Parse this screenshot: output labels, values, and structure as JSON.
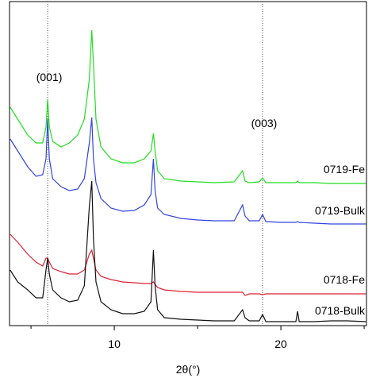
{
  "chart_data": {
    "type": "line",
    "xlabel": "2θ(°)",
    "xlim": [
      3.71,
      25.14
    ],
    "xticks": [
      10,
      20
    ],
    "xminor": [
      5,
      15,
      25
    ],
    "ylim": [
      0,
      408
    ],
    "ref_lines": [
      {
        "x": 6.0,
        "label": "(001)"
      },
      {
        "x": 18.9,
        "label": "(003)"
      }
    ],
    "x": [
      3.75,
      4.2,
      4.8,
      5.3,
      5.7,
      5.9,
      6.0,
      6.1,
      6.3,
      6.8,
      7.3,
      7.8,
      8.2,
      8.5,
      8.65,
      8.75,
      8.9,
      9.2,
      9.8,
      10.5,
      11.2,
      11.8,
      12.2,
      12.35,
      12.45,
      12.6,
      13.0,
      14,
      15,
      16,
      17.2,
      17.7,
      17.85,
      18.1,
      18.7,
      18.9,
      19.1,
      20,
      20.9,
      21.0,
      21.1,
      22,
      23,
      24,
      25.1
    ],
    "series": [
      {
        "name": "0719-Fe",
        "color": "#22dd22",
        "values": [
          275,
          260,
          240,
          230,
          230,
          250,
          285,
          250,
          232,
          225,
          230,
          240,
          260,
          310,
          372,
          330,
          260,
          225,
          210,
          205,
          205,
          210,
          220,
          242,
          220,
          195,
          185,
          182,
          181,
          180,
          181,
          195,
          182,
          180,
          181,
          186,
          180,
          180,
          180,
          182,
          180,
          180,
          179,
          179,
          179
        ]
      },
      {
        "name": "0719-Bulk",
        "color": "#3344dd",
        "values": [
          235,
          220,
          200,
          188,
          190,
          210,
          260,
          210,
          185,
          175,
          170,
          172,
          185,
          230,
          262,
          210,
          180,
          160,
          148,
          144,
          145,
          152,
          165,
          210,
          170,
          148,
          140,
          135,
          133,
          132,
          132,
          152,
          138,
          132,
          132,
          140,
          131,
          130,
          130,
          131,
          130,
          129,
          128,
          128,
          128
        ]
      },
      {
        "name": "0718-Fe",
        "color": "#dd2233",
        "values": [
          115,
          105,
          90,
          80,
          75,
          85,
          85,
          80,
          72,
          68,
          65,
          65,
          70,
          90,
          95,
          85,
          70,
          62,
          58,
          55,
          54,
          53,
          53,
          55,
          52,
          48,
          45,
          43,
          42,
          42,
          42,
          42,
          38,
          40,
          40,
          39,
          40,
          40,
          40,
          40,
          40,
          40,
          40,
          40,
          40
        ]
      },
      {
        "name": "0718-Bulk",
        "color": "#111111",
        "values": [
          70,
          55,
          45,
          35,
          35,
          70,
          85,
          65,
          45,
          35,
          30,
          32,
          50,
          150,
          182,
          110,
          55,
          30,
          20,
          15,
          15,
          18,
          30,
          95,
          50,
          20,
          10,
          8,
          7,
          6,
          6,
          20,
          10,
          6,
          6,
          14,
          5,
          5,
          5,
          18,
          5,
          5,
          6,
          6,
          5
        ]
      }
    ]
  }
}
